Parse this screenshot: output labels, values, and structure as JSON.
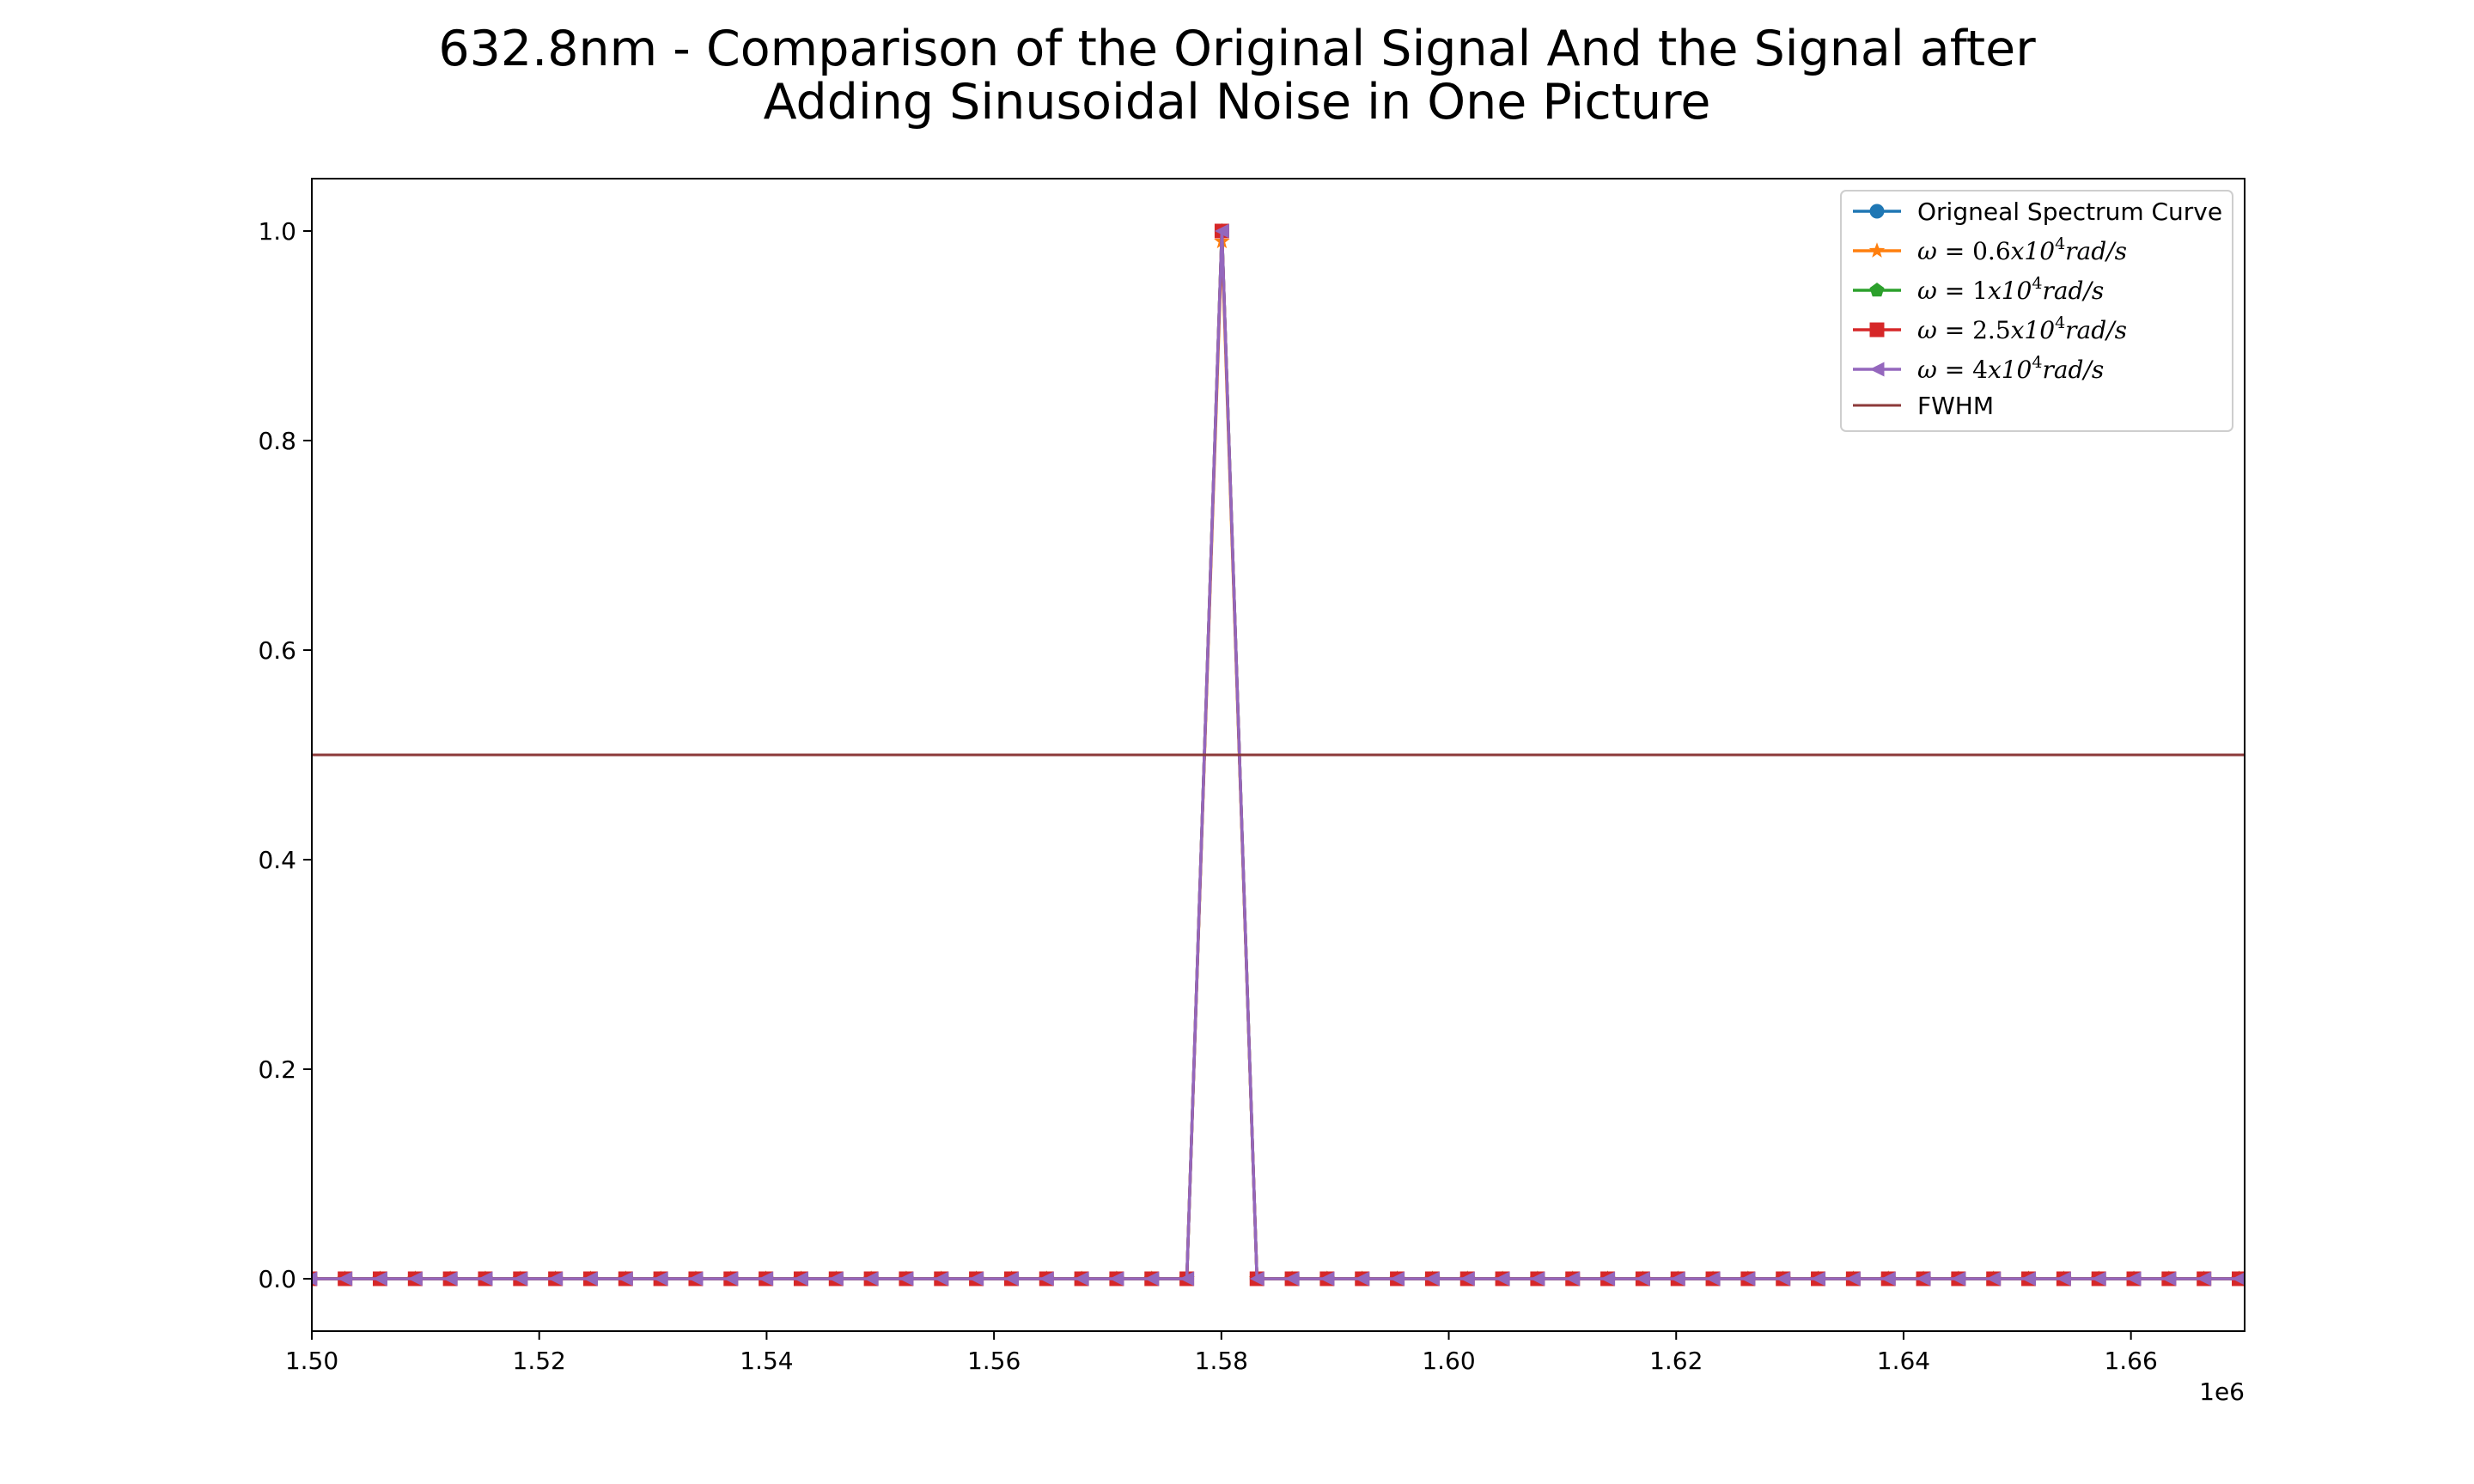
{
  "chart_data": {
    "type": "line",
    "title_lines": [
      "632.8nm - Comparison of the Original Signal And the Signal after",
      "Adding Sinusoidal Noise in One Picture"
    ],
    "xlabel": "",
    "ylabel": "",
    "x_offset_label": "1e6",
    "xlim": [
      1500000,
      1670000
    ],
    "ylim": [
      -0.05,
      1.05
    ],
    "x_ticks": [
      1500000,
      1520000,
      1540000,
      1560000,
      1580000,
      1600000,
      1620000,
      1640000,
      1660000
    ],
    "x_tick_labels": [
      "1.50",
      "1.52",
      "1.54",
      "1.56",
      "1.58",
      "1.60",
      "1.62",
      "1.64",
      "1.66"
    ],
    "y_ticks": [
      0.0,
      0.2,
      0.4,
      0.6,
      0.8,
      1.0
    ],
    "y_tick_labels": [
      "0.0",
      "0.2",
      "0.4",
      "0.6",
      "0.8",
      "1.0"
    ],
    "grid": false,
    "legend_position": "top-right",
    "x_sample_start": 1499835,
    "x_sample_step": 3085,
    "x_sample_count": 57,
    "peak_x": 1580045,
    "series": [
      {
        "name": "Origneal Spectrum Curve",
        "marker": "circle",
        "color": "#1f77b4",
        "peak": 1.0
      },
      {
        "name": "ω = 0.6x10⁴rad/s",
        "marker": "star",
        "color": "#ff7f0e",
        "peak": 0.99
      },
      {
        "name": "ω = 1x10⁴rad/s",
        "marker": "pentagon",
        "color": "#2ca02c",
        "peak": 1.0
      },
      {
        "name": "ω = 2.5x10⁴rad/s",
        "marker": "square",
        "color": "#d62728",
        "peak": 1.0
      },
      {
        "name": "ω = 4x10⁴rad/s",
        "marker": "triangle-left",
        "color": "#9467bd",
        "peak": 1.0
      }
    ],
    "fwhm": {
      "name": "FWHM",
      "y": 0.5,
      "color": "#8c3a3a"
    }
  },
  "legend_math": [
    {
      "omega": "ω",
      "eq": " = ",
      "coef": "0.6",
      "base": "x10",
      "exp": "4",
      "unit": "rad/s"
    },
    {
      "omega": "ω",
      "eq": " = ",
      "coef": "1",
      "base": "x10",
      "exp": "4",
      "unit": "rad/s"
    },
    {
      "omega": "ω",
      "eq": " = ",
      "coef": "2.5",
      "base": "x10",
      "exp": "4",
      "unit": "rad/s"
    },
    {
      "omega": "ω",
      "eq": " = ",
      "coef": "4",
      "base": "x10",
      "exp": "4",
      "unit": "rad/s"
    }
  ]
}
